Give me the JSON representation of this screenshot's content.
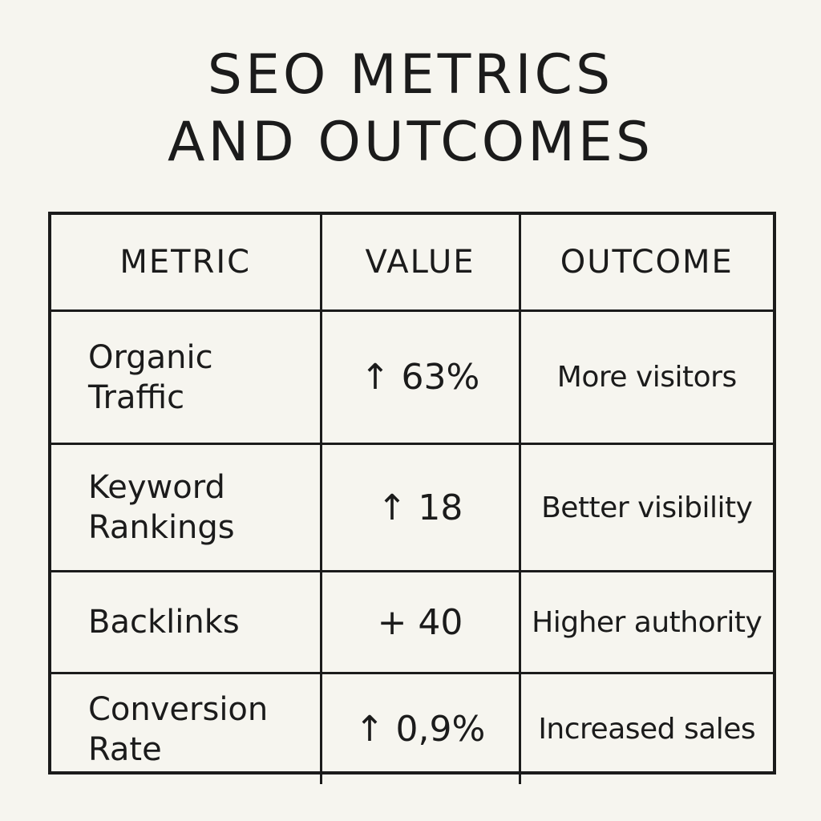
{
  "title_lines": [
    "SEO METRICS",
    "AND OUTCOMES"
  ],
  "chart_data": {
    "type": "table",
    "title": "SEO METRICS AND OUTCOMES",
    "columns": [
      "METRIC",
      "VALUE",
      "OUTCOME"
    ],
    "rows": [
      {
        "metric": "Organic Traffic",
        "value": "↑ 63%",
        "outcome": "More visitors"
      },
      {
        "metric": "Keyword Rankings",
        "value": "↑ 18",
        "outcome": "Better visibility"
      },
      {
        "metric": "Backlinks",
        "value": "+ 40",
        "outcome": "Higher authority"
      },
      {
        "metric": "Conversion Rate",
        "value": "↑ 0,9%",
        "outcome": "Increased sales"
      }
    ]
  }
}
